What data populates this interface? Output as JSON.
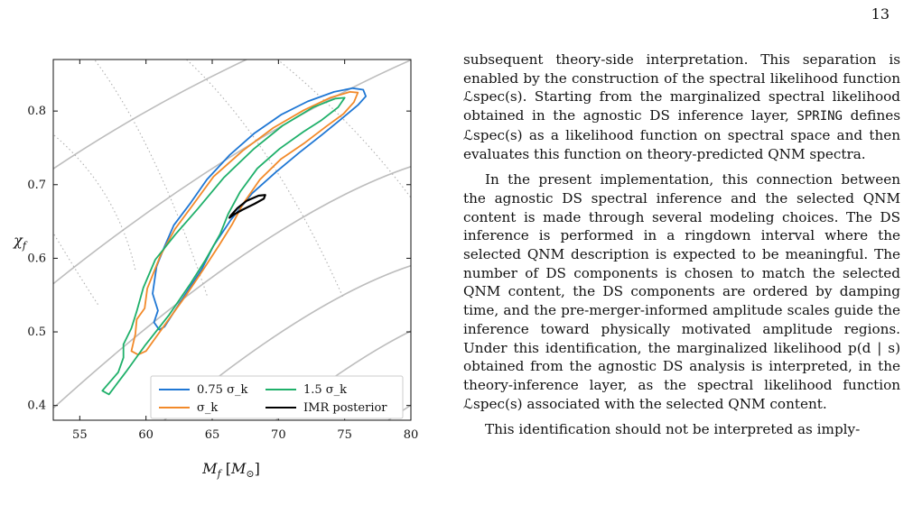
{
  "page": {
    "number": "13"
  },
  "chart_data": {
    "type": "line",
    "xlabel": "M_f [M_⊙]",
    "ylabel": "χ_f",
    "xlim": [
      53,
      80
    ],
    "ylim": [
      0.38,
      0.87
    ],
    "xticks": [
      "55",
      "60",
      "65",
      "70",
      "75",
      "80"
    ],
    "yticks": [
      "0.4",
      "0.5",
      "0.6",
      "0.7",
      "0.8"
    ],
    "legend_position": "bottom-right",
    "series": [
      {
        "name": "0.75 σ_k",
        "color": "#1f77d4",
        "points": [
          [
            61.0,
            0.503
          ],
          [
            60.6,
            0.513
          ],
          [
            60.9,
            0.529
          ],
          [
            60.5,
            0.552
          ],
          [
            60.8,
            0.589
          ],
          [
            61.4,
            0.616
          ],
          [
            62.1,
            0.645
          ],
          [
            63.4,
            0.676
          ],
          [
            64.6,
            0.707
          ],
          [
            66.3,
            0.74
          ],
          [
            68.2,
            0.77
          ],
          [
            70.2,
            0.795
          ],
          [
            72.2,
            0.813
          ],
          [
            74.2,
            0.826
          ],
          [
            75.6,
            0.831
          ],
          [
            76.4,
            0.829
          ],
          [
            76.6,
            0.82
          ],
          [
            76.0,
            0.808
          ],
          [
            74.8,
            0.79
          ],
          [
            73.3,
            0.768
          ],
          [
            71.6,
            0.744
          ],
          [
            69.8,
            0.717
          ],
          [
            68.0,
            0.688
          ],
          [
            66.4,
            0.652
          ],
          [
            65.1,
            0.617
          ],
          [
            64.2,
            0.585
          ],
          [
            62.9,
            0.549
          ],
          [
            61.9,
            0.521
          ],
          [
            61.4,
            0.507
          ],
          [
            61.0,
            0.503
          ]
        ]
      },
      {
        "name": "σ_k",
        "color": "#f28a2a",
        "points": [
          [
            59.4,
            0.469
          ],
          [
            58.9,
            0.474
          ],
          [
            59.2,
            0.497
          ],
          [
            59.3,
            0.517
          ],
          [
            59.9,
            0.532
          ],
          [
            60.1,
            0.559
          ],
          [
            61.1,
            0.604
          ],
          [
            62.2,
            0.64
          ],
          [
            63.6,
            0.674
          ],
          [
            65.1,
            0.711
          ],
          [
            67.3,
            0.746
          ],
          [
            69.6,
            0.777
          ],
          [
            71.9,
            0.801
          ],
          [
            73.9,
            0.818
          ],
          [
            75.4,
            0.826
          ],
          [
            76.0,
            0.825
          ],
          [
            75.7,
            0.812
          ],
          [
            74.9,
            0.796
          ],
          [
            73.6,
            0.779
          ],
          [
            72.0,
            0.757
          ],
          [
            70.2,
            0.735
          ],
          [
            68.6,
            0.707
          ],
          [
            67.3,
            0.673
          ],
          [
            66.5,
            0.646
          ],
          [
            65.5,
            0.617
          ],
          [
            64.3,
            0.584
          ],
          [
            63.0,
            0.549
          ],
          [
            61.4,
            0.509
          ],
          [
            60.0,
            0.474
          ],
          [
            59.4,
            0.469
          ]
        ]
      },
      {
        "name": "1.5 σ_k",
        "color": "#1fb06a",
        "points": [
          [
            57.2,
            0.415
          ],
          [
            56.7,
            0.42
          ],
          [
            57.9,
            0.445
          ],
          [
            58.3,
            0.465
          ],
          [
            58.3,
            0.483
          ],
          [
            58.9,
            0.505
          ],
          [
            59.3,
            0.528
          ],
          [
            59.8,
            0.56
          ],
          [
            60.7,
            0.598
          ],
          [
            62.2,
            0.632
          ],
          [
            63.9,
            0.667
          ],
          [
            65.9,
            0.71
          ],
          [
            68.1,
            0.748
          ],
          [
            70.3,
            0.78
          ],
          [
            72.6,
            0.805
          ],
          [
            74.3,
            0.817
          ],
          [
            75.0,
            0.818
          ],
          [
            74.5,
            0.805
          ],
          [
            73.2,
            0.787
          ],
          [
            71.9,
            0.772
          ],
          [
            70.1,
            0.749
          ],
          [
            68.4,
            0.722
          ],
          [
            67.1,
            0.69
          ],
          [
            66.2,
            0.66
          ],
          [
            65.6,
            0.633
          ],
          [
            64.5,
            0.598
          ],
          [
            63.3,
            0.564
          ],
          [
            61.7,
            0.522
          ],
          [
            59.9,
            0.481
          ],
          [
            58.5,
            0.446
          ],
          [
            57.2,
            0.415
          ]
        ]
      },
      {
        "name": "IMR posterior",
        "color": "#000000",
        "points": [
          [
            67.6,
            0.678
          ],
          [
            68.5,
            0.685
          ],
          [
            69.0,
            0.686
          ],
          [
            68.9,
            0.681
          ],
          [
            68.2,
            0.674
          ],
          [
            67.3,
            0.666
          ],
          [
            66.6,
            0.659
          ],
          [
            66.3,
            0.655
          ],
          [
            66.4,
            0.658
          ],
          [
            66.9,
            0.668
          ],
          [
            67.6,
            0.678
          ]
        ]
      }
    ]
  },
  "text": {
    "p1": "subsequent theory-side interpretation. This separation is enabled by the construction of the spectral likelihood function ℒspec(s). Starting from the marginalized spectral likelihood obtained in the agnostic DS inference layer, ",
    "p1_code": "SPRING",
    "p1_rest": " defines ℒspec(s) as a likelihood function on spectral space and then evaluates this function on theory-predicted QNM spectra.",
    "p2": "In the present implementation, this connection between the agnostic DS spectral inference and the selected QNM content is made through several modeling choices. The DS inference is performed in a ringdown interval where the selected QNM description is expected to be meaningful. The number of DS components is chosen to match the selected QNM content, the DS components are ordered by damping time, and the pre-merger-informed amplitude scales guide the inference toward physically motivated amplitude regions. Under this identification, the marginalized likelihood p(d | s) obtained from the agnostic DS analysis is interpreted, in the theory-inference layer, as the spectral likelihood function ℒspec(s) associated with the selected QNM content.",
    "p3": "This identification should not be interpreted as imply-"
  }
}
